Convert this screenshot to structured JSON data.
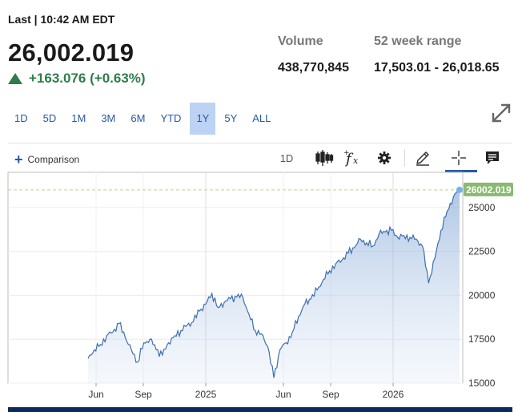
{
  "quote": {
    "last_label": "Last | 10:42 AM EDT",
    "price": "26,002.019",
    "change": "+163.076 (+0.63%)",
    "change_color": "#2d7d4a"
  },
  "stats": {
    "volume_label": "Volume",
    "volume_value": "438,770,845",
    "range_label": "52 week range",
    "range_value": "17,503.01 - 26,018.65"
  },
  "ranges": [
    "1D",
    "5D",
    "1M",
    "3M",
    "6M",
    "YTD",
    "1Y",
    "5Y",
    "ALL"
  ],
  "active_range": "1Y",
  "toolbar": {
    "comparison_label": "Comparison",
    "interval_label": "1D",
    "icons": [
      "candlestick-icon",
      "function-icon",
      "gear-icon",
      "pencil-icon",
      "crosshair-icon",
      "comment-icon"
    ]
  },
  "chart_data": {
    "type": "area",
    "title": "",
    "xlabel": "",
    "ylabel": "",
    "x_ticks": [
      "Jun",
      "Sep",
      "2025",
      "Jun",
      "Sep",
      "2026"
    ],
    "y_ticks": [
      15000,
      17500,
      20000,
      22500,
      25000
    ],
    "ylim": [
      15000,
      27000
    ],
    "last_value": 26002.019,
    "last_value_label": "26002.019",
    "accent_color": "#3d6fae",
    "label_color": "#8ab972",
    "grid": true,
    "series": [
      {
        "values": [
          16400,
          16900,
          17200,
          17700,
          17900,
          18400,
          17600,
          16900,
          16200,
          17300,
          17500,
          16900,
          16600,
          17300,
          17700,
          18000,
          18300,
          18500,
          19100,
          19500,
          20100,
          19300,
          19600,
          19800,
          19900,
          19900,
          18900,
          18000,
          17800,
          17100,
          15300,
          16900,
          17300,
          17900,
          18800,
          19500,
          19800,
          20300,
          20900,
          21400,
          21800,
          22000,
          22400,
          22700,
          23200,
          23000,
          22800,
          23500,
          23600,
          23700,
          23300,
          23400,
          23300,
          23200,
          22800,
          20700,
          22100,
          23700,
          24800,
          25600,
          26002
        ]
      }
    ]
  }
}
